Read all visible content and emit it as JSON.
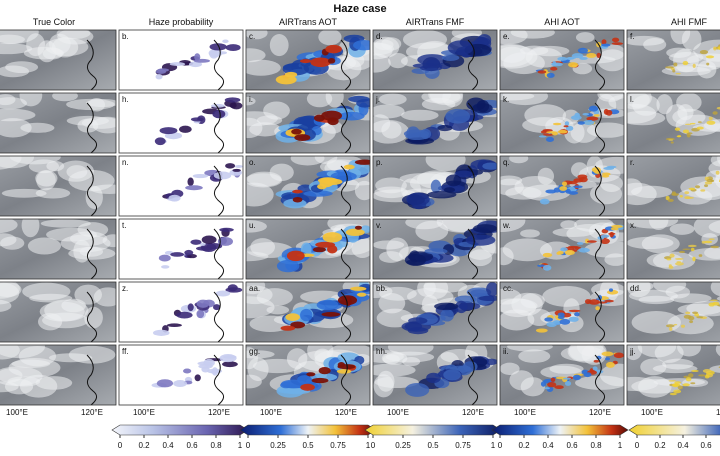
{
  "title": "Haze case",
  "columns": [
    "True Color",
    "Haze probability",
    "AIRTrans AOT",
    "AIRTrans FMF",
    "AHI AOT",
    "AHI FMF"
  ],
  "panel_labels": [
    [
      "b.",
      "c.",
      "d.",
      "e.",
      "f."
    ],
    [
      "h.",
      "i.",
      "j.",
      "k.",
      "l."
    ],
    [
      "n.",
      "o.",
      "p.",
      "q.",
      "r."
    ],
    [
      "t.",
      "u.",
      "v.",
      "w.",
      "x."
    ],
    [
      "z.",
      "aa.",
      "bb.",
      "cc.",
      "dd."
    ],
    [
      "ff.",
      "gg.",
      "hh.",
      "ii.",
      "jj."
    ]
  ],
  "x_tick_labels": [
    "100°E",
    "120°E"
  ],
  "colorbars": [
    {
      "ticks": [
        0,
        0.2,
        0.4,
        0.6,
        0.8,
        1
      ]
    },
    {
      "ticks": [
        0,
        0.25,
        0.5,
        0.75,
        1
      ]
    },
    {
      "ticks": [
        0,
        0.25,
        0.5,
        0.75,
        1
      ]
    },
    {
      "ticks": [
        0,
        0.2,
        0.4,
        0.6,
        0.8,
        1
      ]
    },
    {
      "ticks": [
        0,
        0.2,
        0.4,
        0.6
      ]
    }
  ]
}
